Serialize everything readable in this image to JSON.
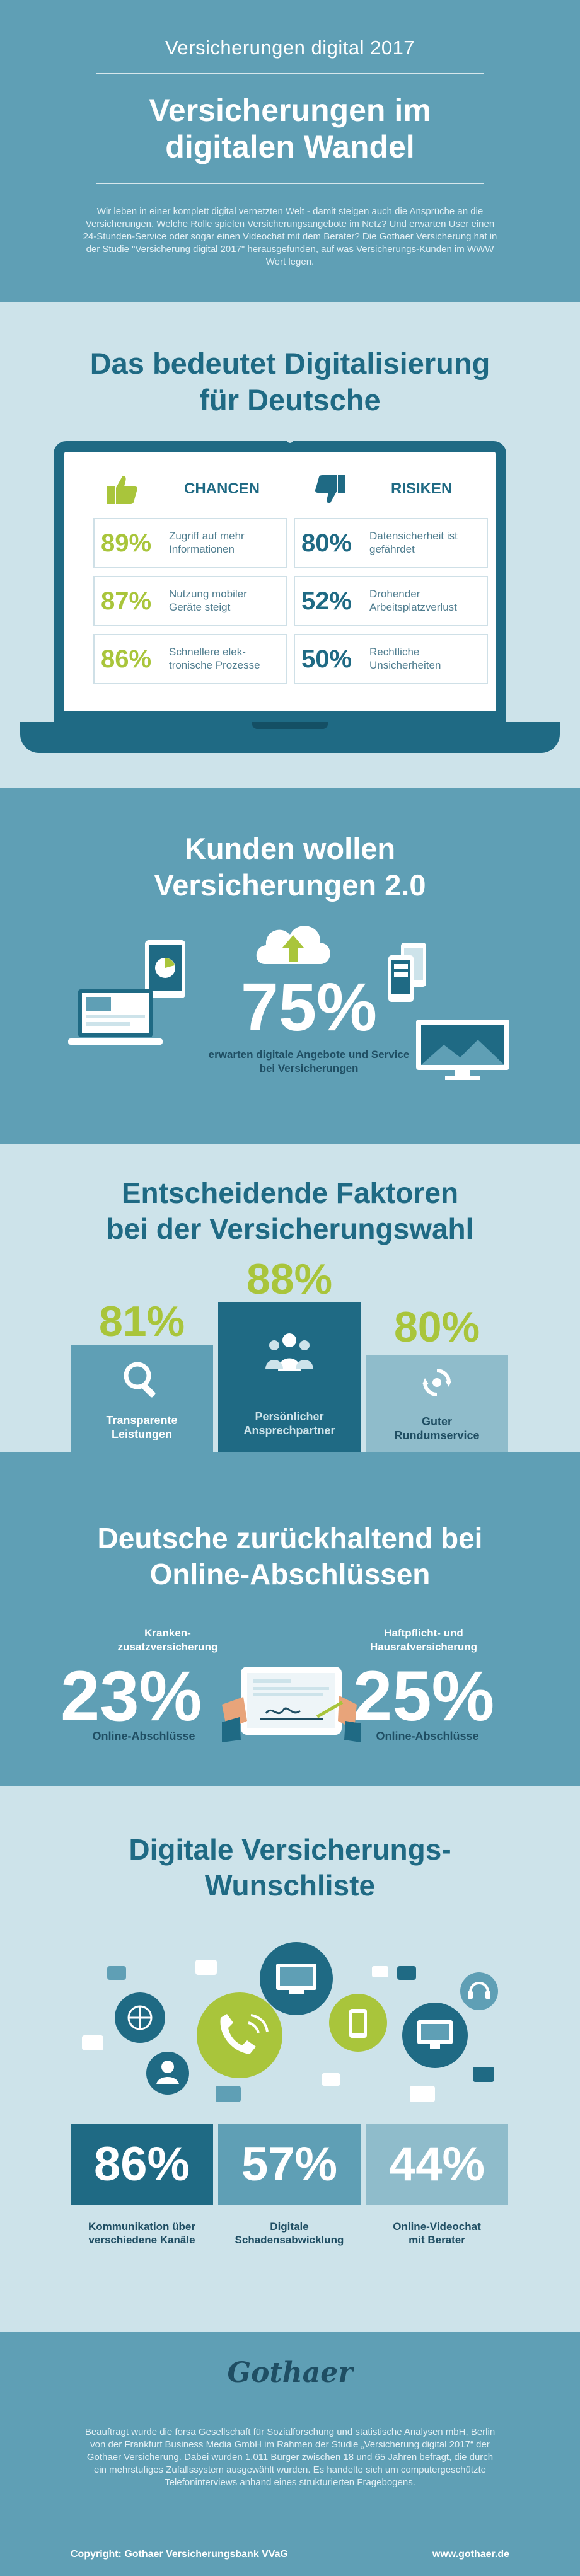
{
  "header": {
    "kicker": "Versicherungen digital 2017",
    "title_line1": "Versicherungen im",
    "title_line2": "digitalen Wandel",
    "intro": "Wir leben in einer komplett digital vernetzten Welt - damit steigen auch die Ansprüche an die Versicherungen. Welche Rolle spielen Versicherungsangebote im Netz? Und erwarten User einen 24-Stunden-Service oder sogar einen Videochat mit dem Berater? Die Gothaer Versicherung hat in der Studie \"Versicherung digital 2017\" herausgefunden, auf was Versicherungs-Kunden im WWW Wert legen."
  },
  "digital": {
    "title_line1": "Das bedeutet Digitalisierung",
    "title_line2": "für Deutsche",
    "chancen_label": "CHANCEN",
    "risiken_label": "RISIKEN",
    "chancen": [
      {
        "pct": "89%",
        "text": "Zugriff auf mehr Informationen"
      },
      {
        "pct": "87%",
        "text": "Nutzung mobiler Geräte steigt"
      },
      {
        "pct": "86%",
        "text": "Schnellere elek-tronische Prozesse"
      }
    ],
    "risiken": [
      {
        "pct": "80%",
        "text": "Datensicherheit ist gefährdet"
      },
      {
        "pct": "52%",
        "text": "Drohender Arbeitsplatzverlust"
      },
      {
        "pct": "50%",
        "text": "Rechtliche Unsicherheiten"
      }
    ],
    "colors": {
      "chance": "#a9c53b",
      "risk": "#1f6a84"
    }
  },
  "kunden": {
    "title_line1": "Kunden wollen",
    "title_line2": "Versicherungen 2.0",
    "pct": "75%",
    "sub": "erwarten digitale Angebote und Service bei Versicherungen",
    "icons": [
      "tablet-icon",
      "cloud-upload-icon",
      "smartphones-icon",
      "laptop-icon",
      "monitor-icon"
    ]
  },
  "faktoren": {
    "title_line1": "Entscheidende Faktoren",
    "title_line2": "bei der Versicherungswahl",
    "items": [
      {
        "pct": "81%",
        "label_line1": "Transparente",
        "label_line2": "Leistungen",
        "icon": "magnifier-icon",
        "value": 81
      },
      {
        "pct": "88%",
        "label_line1": "Persönlicher",
        "label_line2": "Ansprechpartner",
        "icon": "people-icon",
        "value": 88
      },
      {
        "pct": "80%",
        "label_line1": "Guter",
        "label_line2": "Rundumservice",
        "icon": "service-cycle-icon",
        "value": 80
      }
    ]
  },
  "online": {
    "title_line1": "Deutsche zurückhaltend bei",
    "title_line2": "Online-Abschlüssen",
    "left": {
      "label_line1": "Kranken-",
      "label_line2": "zusatzversicherung",
      "pct": "23%",
      "cap": "Online-Abschlüsse"
    },
    "right": {
      "label_line1": "Haftpflicht- und",
      "label_line2": "Hausratversicherung",
      "pct": "25%",
      "cap": "Online-Abschlüsse"
    }
  },
  "wunsch": {
    "title_line1": "Digitale Versicherungs-",
    "title_line2": "Wunschliste",
    "items": [
      {
        "pct": "86%",
        "label_line1": "Kommunikation über",
        "label_line2": "verschiedene Kanäle",
        "color": "#1f6a84"
      },
      {
        "pct": "57%",
        "label_line1": "Digitale",
        "label_line2": "Schadensabwicklung",
        "color": "#5f9fb5"
      },
      {
        "pct": "44%",
        "label_line1": "Online-Videochat",
        "label_line2": "mit Berater",
        "color": "#8fbccb"
      }
    ]
  },
  "footer": {
    "logo": "Gothaer",
    "text": "Beauftragt wurde die forsa Gesellschaft für Sozialforschung und statistische Analysen mbH, Berlin von der Frankfurt Business Media GmbH im Rahmen der Studie „Versicherung digital 2017“ der Gothaer Versicherung. Dabei wurden 1.011 Bürger zwischen 18 und 65 Jahren befragt, die durch ein mehrstufiges Zufallssystem ausgewählt wurden. Es handelte sich um computergeschützte Telefoninterviews anhand eines strukturierten Fragebogens.",
    "copyright": "Copyright: Gothaer Versicherungsbank VVaG",
    "url": "www.gothaer.de"
  }
}
